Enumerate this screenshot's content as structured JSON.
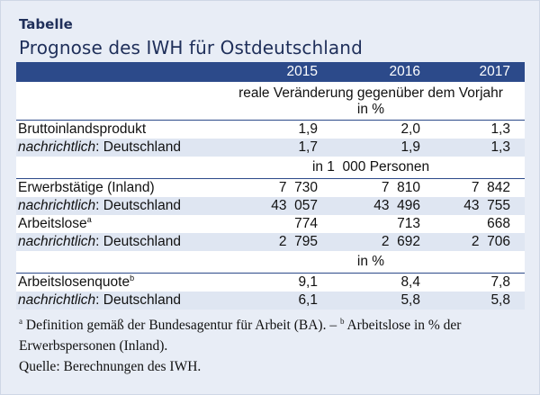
{
  "kicker": "Tabelle",
  "title": "Prognose des IWH für Ostdeutschland",
  "years": [
    "2015",
    "2016",
    "2017"
  ],
  "units": {
    "change_line1": "reale Veränderung gegenüber dem Vorjahr",
    "change_line2": "in %",
    "persons": "in 1  000 Personen",
    "percent": "in %"
  },
  "rows": {
    "bip": {
      "label": "Bruttoinlandsprodukt",
      "values": [
        "1,9",
        "2,0",
        "1,3"
      ]
    },
    "bip_de": {
      "label_em": "nachrichtlich",
      "label_rest": ": Deutschland",
      "values": [
        "1,7",
        "1,9",
        "1,3"
      ]
    },
    "erw": {
      "label": "Erwerbstätige (Inland)",
      "values": [
        "7  730",
        "7  810",
        "7  842"
      ]
    },
    "erw_de": {
      "label_em": "nachrichtlich",
      "label_rest": ": Deutschland",
      "values": [
        "43  057",
        "43  496",
        "43  755"
      ]
    },
    "alo": {
      "label": "Arbeitslose",
      "sup": "a",
      "values": [
        "774",
        "713",
        "668"
      ]
    },
    "alo_de": {
      "label_em": "nachrichtlich",
      "label_rest": ": Deutschland",
      "values": [
        "2  795",
        "2  692",
        "2  706"
      ]
    },
    "quote": {
      "label": "Arbeitslosenquote",
      "sup": "b",
      "values": [
        "9,1",
        "8,4",
        "7,8"
      ]
    },
    "quote_de": {
      "label_em": "nachrichtlich",
      "label_rest": ": Deutschland",
      "values": [
        "6,1",
        "5,8",
        "5,8"
      ]
    }
  },
  "footnotes": {
    "a_mark": "a",
    "a_text": " Definition gemäß der Bundesagentur für Arbeit (BA). – ",
    "b_mark": "b",
    "b_text": " Arbeitslose in % der",
    "line2": "Erwerbspersonen (Inland).",
    "source": "Quelle: Berechnungen des IWH."
  }
}
